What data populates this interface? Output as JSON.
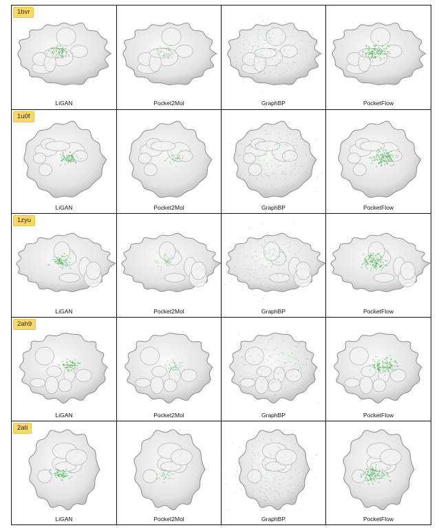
{
  "rows": [
    {
      "pdb": "1bvr",
      "labels": [
        "LiGAN",
        "Pocket2Mol",
        "GraphBP",
        "PocketFlow"
      ]
    },
    {
      "pdb": "1u0f",
      "labels": [
        "LiGAN",
        "Pocket2Mol",
        "GraphBP",
        "PocketFlow"
      ]
    },
    {
      "pdb": "1zyu",
      "labels": [
        "LiGAN",
        "Pocket2Mol",
        "GraphBP",
        "PocketFlow"
      ]
    },
    {
      "pdb": "2ah9",
      "labels": [
        "LiGAN",
        "Pocket2Mol",
        "GraphBP",
        "PocketFlow"
      ]
    },
    {
      "pdb": "2ati",
      "labels": [
        "LiGAN",
        "Pocket2Mol",
        "GraphBP",
        "PocketFlow"
      ]
    }
  ],
  "colors": {
    "badge": "#ffd966",
    "surface": "#e4e4e4",
    "ligand": "#3cb043",
    "border": "#111111"
  },
  "icons": {
    "render": "protein-surface-render",
    "cloud": "ligand-point-cloud"
  }
}
